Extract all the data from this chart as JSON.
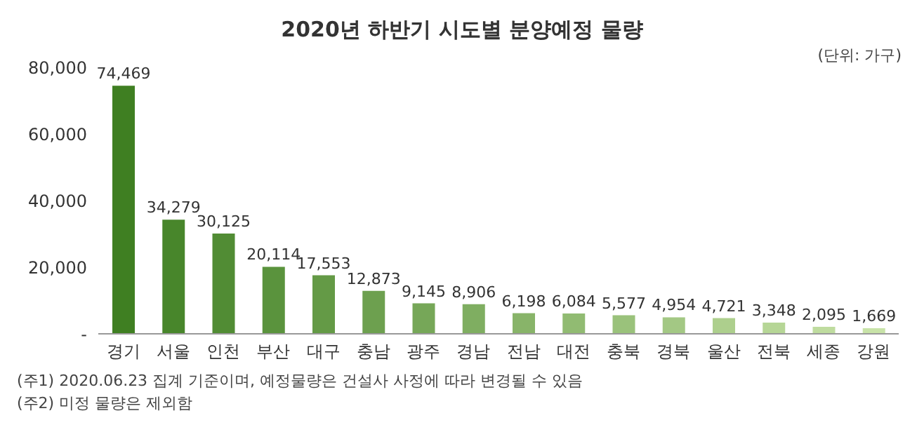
{
  "chart_data": {
    "type": "bar",
    "title": "2020년 하반기 시도별 분양예정 물량",
    "categories": [
      "경기",
      "서울",
      "인천",
      "부산",
      "대구",
      "충남",
      "광주",
      "경남",
      "전남",
      "대전",
      "충북",
      "경북",
      "울산",
      "전북",
      "세종",
      "강원"
    ],
    "values": [
      74469,
      34279,
      30125,
      20114,
      17553,
      12873,
      9145,
      8906,
      6198,
      6084,
      5577,
      4954,
      4721,
      3348,
      2095,
      1669
    ],
    "colors": [
      "#3f7f22",
      "#48862b",
      "#518c34",
      "#5a933d",
      "#649a46",
      "#6da04f",
      "#76a758",
      "#7fae61",
      "#88b469",
      "#91bb72",
      "#9ac27b",
      "#a3c884",
      "#adcf8d",
      "#b6d696",
      "#bfdc9f",
      "#c8e3a8"
    ],
    "ylim": [
      0,
      80000
    ],
    "yticks": [
      {
        "value": 0,
        "label": "-"
      },
      {
        "value": 20000,
        "label": "20,000"
      },
      {
        "value": 40000,
        "label": "40,000"
      },
      {
        "value": 60000,
        "label": "60,000"
      },
      {
        "value": 80000,
        "label": "80,000"
      }
    ],
    "value_labels": [
      "74,469",
      "34,279",
      "30,125",
      "20,114",
      "17,553",
      "12,873",
      "9,145",
      "8,906",
      "6,198",
      "6,084",
      "5,577",
      "4,954",
      "4,721",
      "3,348",
      "2,095",
      "1,669"
    ],
    "grid": false,
    "legend": false,
    "annotations": [
      "(단위: 가구)",
      "(주1) 2020.06.23 집계 기준이며, 예정물량은 건설사 사정에 따라 변경될 수 있음",
      "(주2) 미정 물량은 제외함"
    ]
  }
}
